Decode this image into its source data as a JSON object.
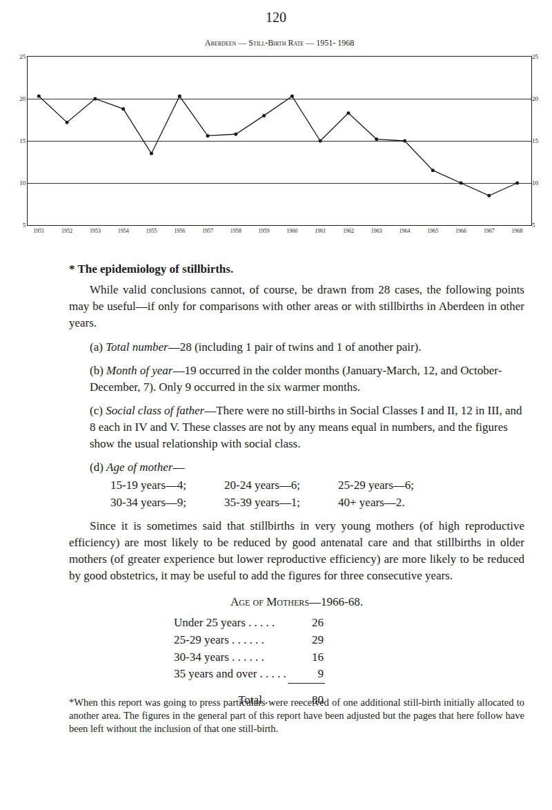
{
  "page_number": "120",
  "chart_data": {
    "type": "line",
    "title": "Aberdeen — Still-Birth Rate — 1951- 1968",
    "x": [
      1951,
      1952,
      1953,
      1954,
      1955,
      1956,
      1957,
      1958,
      1959,
      1960,
      1961,
      1962,
      1963,
      1964,
      1965,
      1966,
      1967,
      1968
    ],
    "values": [
      20.3,
      17.2,
      20,
      18.8,
      13.5,
      20.3,
      15.6,
      15.8,
      18,
      20.3,
      15,
      18.3,
      15.2,
      15,
      11.5,
      10,
      8.5,
      10
    ],
    "color": "#1a1a1a",
    "marker": "circle",
    "xlim": [
      1950.6,
      1968.5
    ],
    "xticks": [
      1951,
      1952,
      1953,
      1954,
      1955,
      1956,
      1957,
      1958,
      1959,
      1960,
      1961,
      1962,
      1963,
      1964,
      1965,
      1966,
      1967,
      1968
    ],
    "ylim": [
      5,
      25
    ],
    "yticks": [
      5,
      10,
      15,
      20,
      25
    ],
    "grid": true
  },
  "heading": "* The epidemiology of stillbirths.",
  "intro": "While valid conclusions cannot, of course, be drawn from 28 cases, the following points may be useful—if only for comparisons with other areas or with stillbirths in Aberdeen in other years.",
  "items": [
    {
      "label": "(a)",
      "title": "Total number",
      "text": "—28 (including 1 pair of twins and 1 of another pair)."
    },
    {
      "label": "(b)",
      "title": "Month of year",
      "text": "—19 occurred in the colder months (January-March, 12, and October-December, 7). Only 9 occurred in the six warmer months."
    },
    {
      "label": "(c)",
      "title": "Social class of father",
      "text": "—There were no still-births in Social Classes I and II, 12 in III, and 8 each in IV and V. These classes are not by any means equal in numbers, and the figures show the usual relationship with social class."
    },
    {
      "label": "(d)",
      "title": "Age of mother",
      "text": "—"
    }
  ],
  "age_list": [
    [
      "15-19 years—4;",
      "20-24 years—6;",
      "25-29 years—6;"
    ],
    [
      "30-34 years—9;",
      "35-39 years—1;",
      "40+ years—2."
    ]
  ],
  "paragraph": "Since it is sometimes said that stillbirths in very young mothers (of high reproductive efficiency) are most likely to be reduced by good antenatal care and that stillbirths in older mothers (of greater experience but lower reproductive efficiency) are more likely to be reduced by good obstetrics, it may be useful to add the figures for three consecutive years.",
  "table": {
    "title": "Age of Mothers—1966-68.",
    "rows": [
      [
        "Under 25 years . . . . .",
        26
      ],
      [
        "25-29 years . . . . . .",
        29
      ],
      [
        "30-34 years . . . . . .",
        16
      ],
      [
        "35 years and over . . . . .",
        9
      ]
    ],
    "total_label": "Total . .",
    "total": 80
  },
  "footnote": "*When this report was going to press particulars were reeceived of one additional still-birth initially allocated to another area. The figures in the general part of this report have been adjusted but the pages that here follow have been left without the inclusion of that one still-birth."
}
